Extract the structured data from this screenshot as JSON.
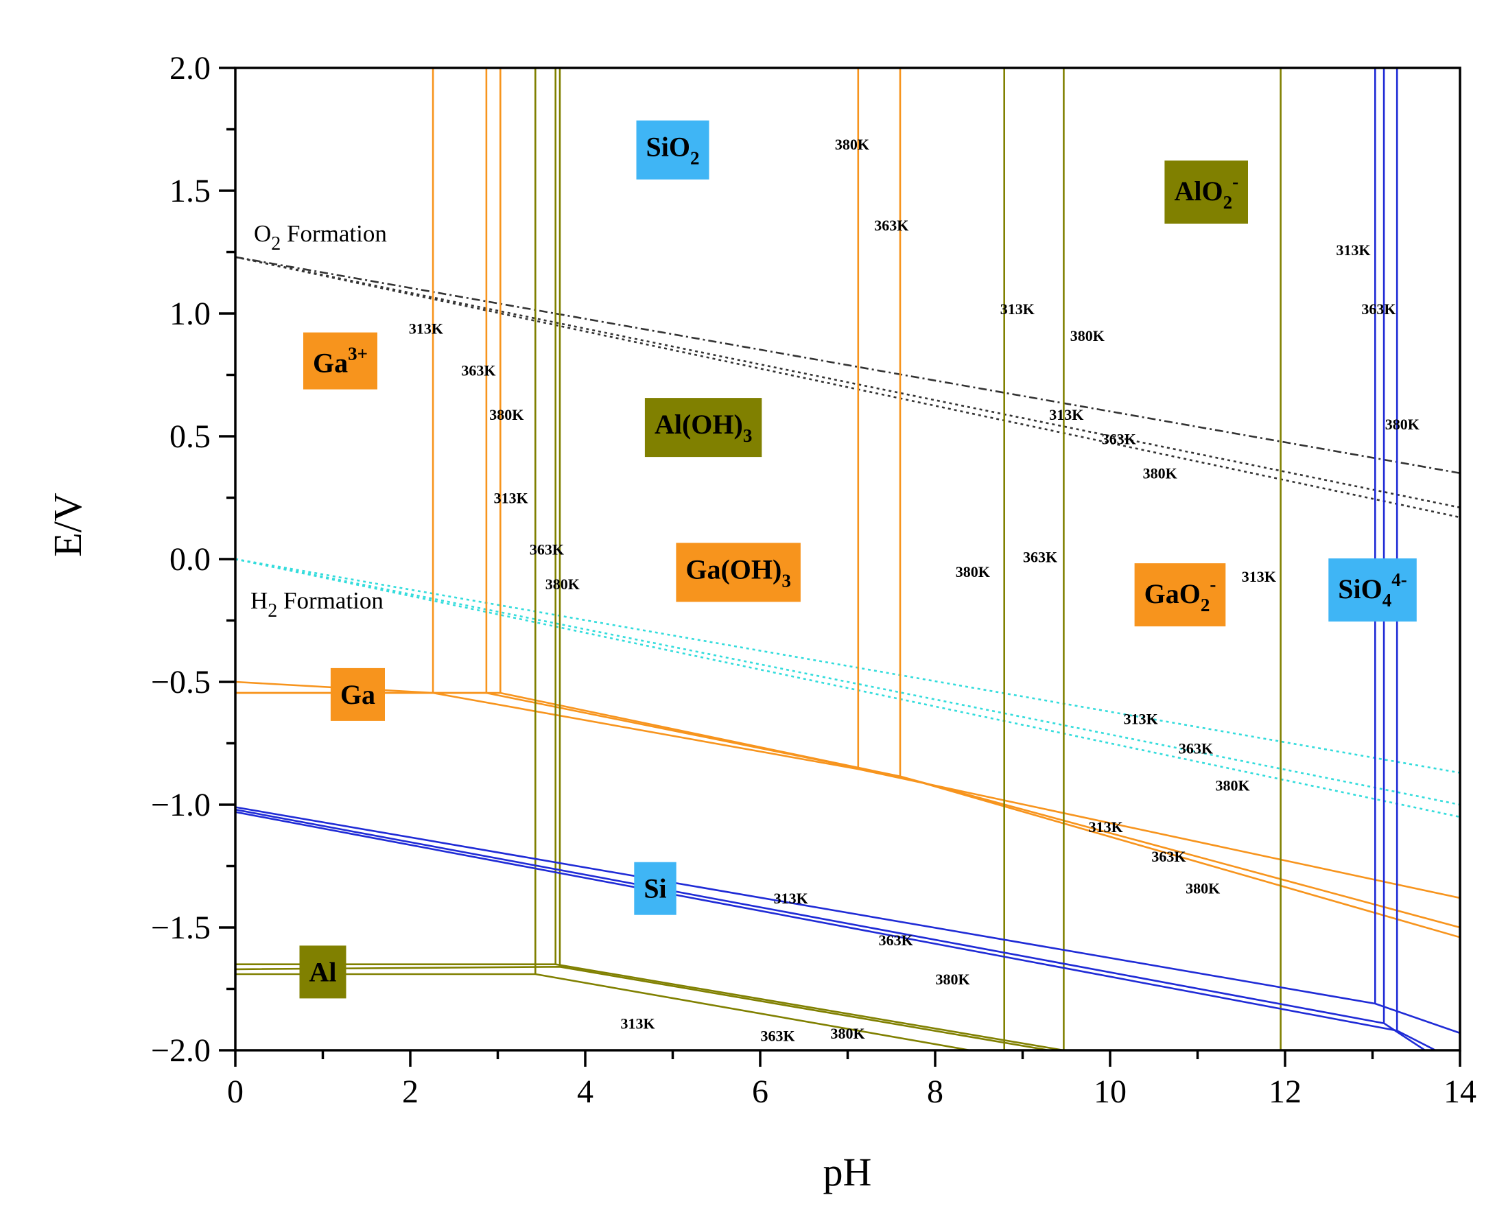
{
  "chart_data": {
    "type": "line",
    "xlabel": "pH",
    "ylabel": "E/V",
    "xlim": [
      0,
      14
    ],
    "ylim": [
      -2.0,
      2.0
    ],
    "x_ticks": [
      0,
      2,
      4,
      6,
      8,
      10,
      12,
      14
    ],
    "y_ticks": [
      2.0,
      1.5,
      1.0,
      0.5,
      0.0,
      -0.5,
      -1.0,
      -1.5,
      -2.0
    ],
    "y_tick_labels": [
      "2.0",
      "1.5",
      "1.0",
      "0.5",
      "0.0",
      "−0.5",
      "−1.0",
      "−1.5",
      "−2.0"
    ],
    "colors": {
      "Ga": "#f7941d",
      "Al": "#808000",
      "Si": "#1f2bd6",
      "Si_label": "#3fb5f5",
      "water_O2": "#333333",
      "water_H2": "#33dcdc"
    },
    "water_lines": [
      {
        "name": "O2 Formation",
        "label": "O",
        "label_sub": "2",
        "label_rest": " Formation",
        "color": "#333333",
        "lines": [
          {
            "points": [
              [
                0,
                1.23
              ],
              [
                14,
                0.35
              ]
            ],
            "dash": "dashdot"
          },
          {
            "points": [
              [
                0,
                1.23
              ],
              [
                14,
                0.21
              ]
            ],
            "dash": "dot"
          },
          {
            "points": [
              [
                0,
                1.23
              ],
              [
                14,
                0.17
              ]
            ],
            "dash": "dot"
          }
        ]
      },
      {
        "name": "H2 Formation",
        "label": "H",
        "label_sub": "2",
        "label_rest": " Formation",
        "color": "#33dcdc",
        "lines": [
          {
            "points": [
              [
                0,
                0.0
              ],
              [
                14,
                -0.87
              ]
            ],
            "dash": "dot"
          },
          {
            "points": [
              [
                0,
                0.0
              ],
              [
                14,
                -1.0
              ]
            ],
            "dash": "dot"
          },
          {
            "points": [
              [
                0,
                0.0
              ],
              [
                14,
                -1.05
              ]
            ],
            "dash": "dot"
          }
        ]
      }
    ],
    "boundaries": [
      {
        "element": "Ga",
        "color": "#f7941d",
        "points": [
          [
            2.26,
            2.0
          ],
          [
            2.26,
            -0.545
          ]
        ]
      },
      {
        "element": "Ga",
        "color": "#f7941d",
        "points": [
          [
            2.87,
            2.0
          ],
          [
            2.87,
            -0.545
          ]
        ]
      },
      {
        "element": "Ga",
        "color": "#f7941d",
        "points": [
          [
            3.03,
            2.0
          ],
          [
            3.03,
            -0.545
          ]
        ]
      },
      {
        "element": "Ga",
        "color": "#f7941d",
        "points": [
          [
            7.12,
            2.0
          ],
          [
            7.12,
            -0.855
          ]
        ]
      },
      {
        "element": "Ga",
        "color": "#f7941d",
        "points": [
          [
            7.6,
            2.0
          ],
          [
            7.6,
            -0.885
          ]
        ]
      },
      {
        "element": "Ga",
        "color": "#f7941d",
        "points": [
          [
            0,
            -0.5
          ],
          [
            2.26,
            -0.545
          ],
          [
            7.12,
            -0.855
          ],
          [
            14,
            -1.38
          ]
        ]
      },
      {
        "element": "Ga",
        "color": "#f7941d",
        "points": [
          [
            0,
            -0.545
          ],
          [
            2.87,
            -0.545
          ],
          [
            7.6,
            -0.885
          ],
          [
            14,
            -1.5
          ]
        ]
      },
      {
        "element": "Ga",
        "color": "#f7941d",
        "points": [
          [
            0,
            -0.545
          ],
          [
            3.03,
            -0.545
          ],
          [
            7.6,
            -0.885
          ],
          [
            14,
            -1.54
          ]
        ]
      },
      {
        "element": "Al",
        "color": "#808000",
        "points": [
          [
            3.43,
            2.0
          ],
          [
            3.43,
            -1.69
          ]
        ]
      },
      {
        "element": "Al",
        "color": "#808000",
        "points": [
          [
            3.66,
            2.0
          ],
          [
            3.66,
            -1.65
          ]
        ]
      },
      {
        "element": "Al",
        "color": "#808000",
        "points": [
          [
            3.71,
            2.0
          ],
          [
            3.71,
            -1.66
          ]
        ]
      },
      {
        "element": "Al",
        "color": "#808000",
        "points": [
          [
            8.79,
            2.0
          ],
          [
            8.79,
            -2.0
          ]
        ]
      },
      {
        "element": "Al",
        "color": "#808000",
        "points": [
          [
            9.47,
            2.0
          ],
          [
            9.47,
            -2.0
          ]
        ]
      },
      {
        "element": "Al",
        "color": "#808000",
        "points": [
          [
            11.95,
            2.0
          ],
          [
            11.95,
            -2.0
          ]
        ]
      },
      {
        "element": "Al",
        "color": "#808000",
        "points": [
          [
            0,
            -1.65
          ],
          [
            3.66,
            -1.65
          ],
          [
            9.47,
            -2.0
          ]
        ]
      },
      {
        "element": "Al",
        "color": "#808000",
        "points": [
          [
            0,
            -1.67
          ],
          [
            3.71,
            -1.66
          ],
          [
            9.3,
            -2.0
          ]
        ]
      },
      {
        "element": "Al",
        "color": "#808000",
        "points": [
          [
            0,
            -1.69
          ],
          [
            3.43,
            -1.69
          ],
          [
            8.4,
            -2.0
          ]
        ]
      },
      {
        "element": "Si",
        "color": "#1f2bd6",
        "points": [
          [
            13.03,
            2.0
          ],
          [
            13.03,
            -1.81
          ]
        ]
      },
      {
        "element": "Si",
        "color": "#1f2bd6",
        "points": [
          [
            13.13,
            2.0
          ],
          [
            13.13,
            -1.89
          ]
        ]
      },
      {
        "element": "Si",
        "color": "#1f2bd6",
        "points": [
          [
            13.28,
            2.0
          ],
          [
            13.28,
            -1.92
          ]
        ]
      },
      {
        "element": "Si",
        "color": "#1f2bd6",
        "points": [
          [
            0,
            -1.01
          ],
          [
            13.03,
            -1.81
          ],
          [
            14,
            -1.93
          ]
        ]
      },
      {
        "element": "Si",
        "color": "#1f2bd6",
        "points": [
          [
            0,
            -1.02
          ],
          [
            13.13,
            -1.89
          ],
          [
            13.6,
            -2.0
          ]
        ]
      },
      {
        "element": "Si",
        "color": "#1f2bd6",
        "points": [
          [
            0,
            -1.03
          ],
          [
            13.28,
            -1.92
          ],
          [
            13.72,
            -2.0
          ]
        ]
      }
    ],
    "regions": [
      {
        "name": "SiO2",
        "base": "SiO",
        "sub": "2",
        "sup": "",
        "x": 5.0,
        "y": 1.68,
        "bg": "#3fb5f5"
      },
      {
        "name": "AlO2-",
        "base": "AlO",
        "sub": "2",
        "sup": "-",
        "x": 11.1,
        "y": 1.5,
        "bg": "#808000"
      },
      {
        "name": "Ga3+",
        "base": "Ga",
        "sub": "",
        "sup": "3+",
        "x": 1.2,
        "y": 0.8,
        "bg": "#f7941d"
      },
      {
        "name": "Al(OH)3",
        "base": "Al(OH)",
        "sub": "3",
        "sup": "",
        "x": 5.35,
        "y": 0.55,
        "bg": "#808000"
      },
      {
        "name": "Ga(OH)3",
        "base": "Ga(OH)",
        "sub": "3",
        "sup": "",
        "x": 5.75,
        "y": -0.04,
        "bg": "#f7941d"
      },
      {
        "name": "GaO2-",
        "base": "GaO",
        "sub": "2",
        "sup": "-",
        "x": 10.8,
        "y": -0.14,
        "bg": "#f7941d"
      },
      {
        "name": "SiO44-",
        "base": "SiO",
        "sub": "4",
        "sup": "4-",
        "x": 13.0,
        "y": -0.12,
        "bg": "#3fb5f5"
      },
      {
        "name": "Ga",
        "base": "Ga",
        "sub": "",
        "sup": "",
        "x": 1.4,
        "y": -0.55,
        "bg": "#f7941d"
      },
      {
        "name": "Si",
        "base": "Si",
        "sub": "",
        "sup": "",
        "x": 4.8,
        "y": -1.34,
        "bg": "#3fb5f5"
      },
      {
        "name": "Al",
        "base": "Al",
        "sub": "",
        "sup": "",
        "x": 1.0,
        "y": -1.68,
        "bg": "#808000"
      }
    ],
    "temperature_labels": [
      {
        "text": "380K",
        "x": 7.05,
        "y": 1.69
      },
      {
        "text": "363K",
        "x": 7.5,
        "y": 1.36
      },
      {
        "text": "313K",
        "x": 12.78,
        "y": 1.26
      },
      {
        "text": "313K",
        "x": 8.94,
        "y": 1.02
      },
      {
        "text": "363K",
        "x": 13.07,
        "y": 1.02
      },
      {
        "text": "380K",
        "x": 9.74,
        "y": 0.91
      },
      {
        "text": "313K",
        "x": 2.18,
        "y": 0.94
      },
      {
        "text": "363K",
        "x": 2.78,
        "y": 0.77
      },
      {
        "text": "380K",
        "x": 3.1,
        "y": 0.59
      },
      {
        "text": "313K",
        "x": 9.5,
        "y": 0.59
      },
      {
        "text": "380K",
        "x": 13.34,
        "y": 0.55
      },
      {
        "text": "363K",
        "x": 10.1,
        "y": 0.49
      },
      {
        "text": "380K",
        "x": 10.57,
        "y": 0.35
      },
      {
        "text": "313K",
        "x": 3.15,
        "y": 0.25
      },
      {
        "text": "363K",
        "x": 3.56,
        "y": 0.04
      },
      {
        "text": "380K",
        "x": 3.74,
        "y": -0.1
      },
      {
        "text": "380K",
        "x": 8.43,
        "y": -0.05
      },
      {
        "text": "363K",
        "x": 9.2,
        "y": 0.01
      },
      {
        "text": "313K",
        "x": 11.7,
        "y": -0.07
      },
      {
        "text": "313K",
        "x": 10.35,
        "y": -0.65
      },
      {
        "text": "363K",
        "x": 10.98,
        "y": -0.77
      },
      {
        "text": "380K",
        "x": 11.4,
        "y": -0.92
      },
      {
        "text": "313K",
        "x": 9.95,
        "y": -1.09
      },
      {
        "text": "363K",
        "x": 10.67,
        "y": -1.21
      },
      {
        "text": "380K",
        "x": 11.06,
        "y": -1.34
      },
      {
        "text": "313K",
        "x": 6.35,
        "y": -1.38
      },
      {
        "text": "363K",
        "x": 7.55,
        "y": -1.55
      },
      {
        "text": "380K",
        "x": 8.2,
        "y": -1.71
      },
      {
        "text": "313K",
        "x": 4.6,
        "y": -1.89
      },
      {
        "text": "363K",
        "x": 6.2,
        "y": -1.94
      },
      {
        "text": "380K",
        "x": 7.0,
        "y": -1.93
      }
    ]
  }
}
